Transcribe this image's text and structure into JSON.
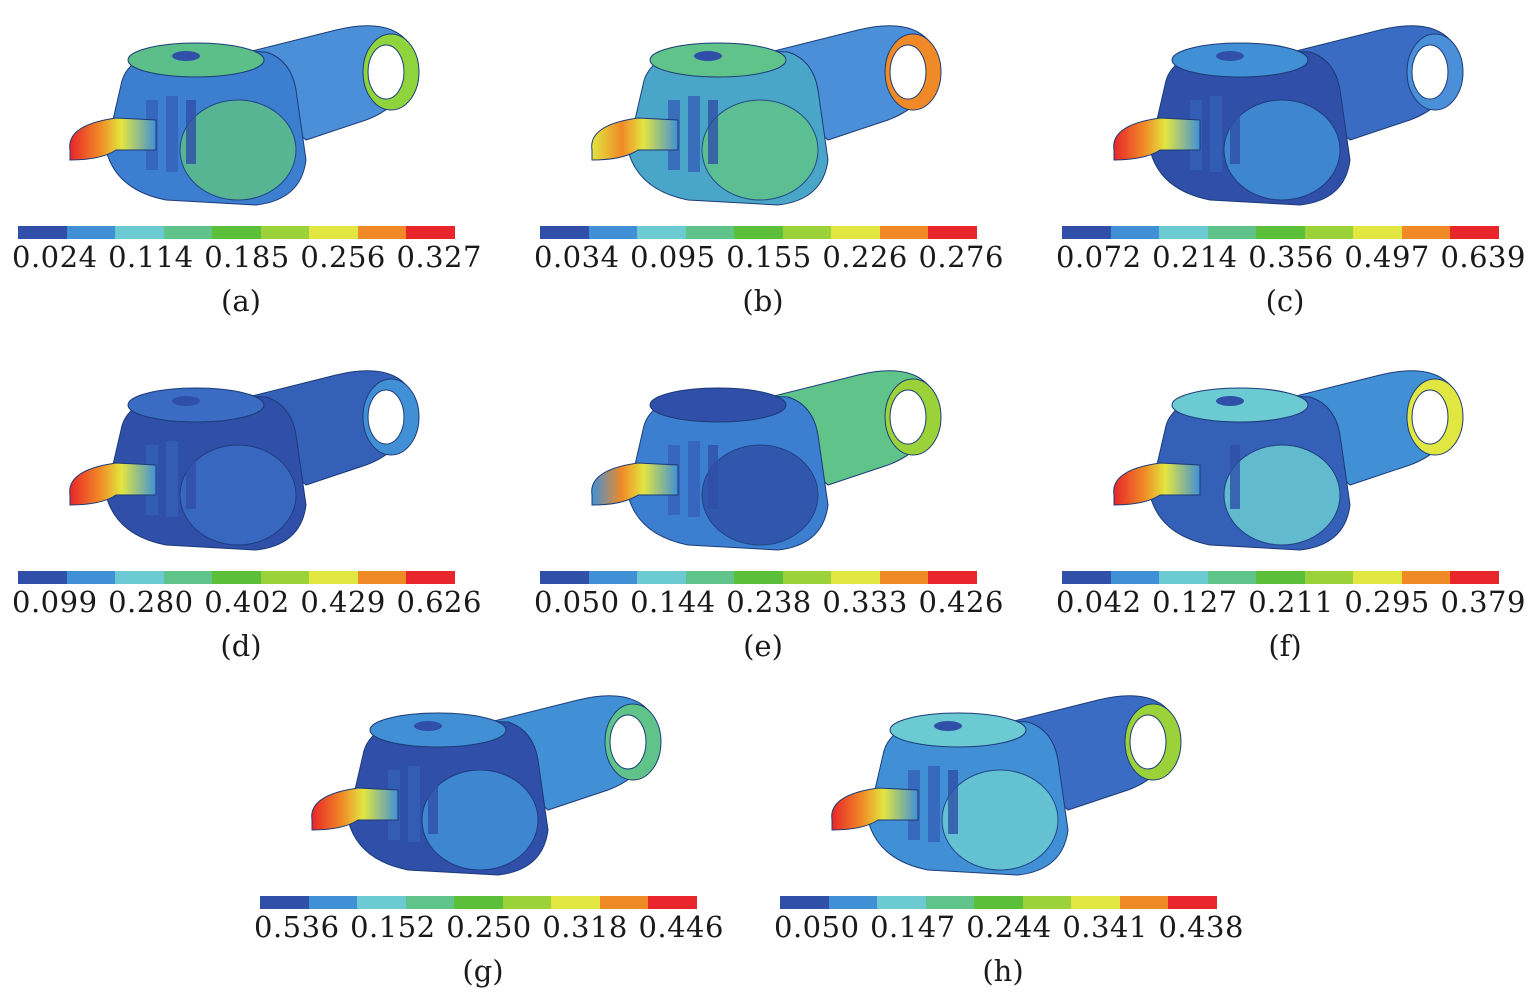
{
  "colormap": [
    "#2f4fa8",
    "#4190d6",
    "#6bcad2",
    "#60c48a",
    "#5cbf3a",
    "#9bd23a",
    "#e2e640",
    "#f08a26",
    "#e8252a"
  ],
  "panels": [
    {
      "label": "(a)",
      "ticks": [
        "0.024",
        "0.114",
        "0.185",
        "0.256",
        "0.327"
      ]
    },
    {
      "label": "(b)",
      "ticks": [
        "0.034",
        "0.095",
        "0.155",
        "0.226",
        "0.276"
      ]
    },
    {
      "label": "(c)",
      "ticks": [
        "0.072",
        "0.214",
        "0.356",
        "0.497",
        "0.639"
      ]
    },
    {
      "label": "(d)",
      "ticks": [
        "0.099",
        "0.280",
        "0.402",
        "0.429",
        "0.626"
      ]
    },
    {
      "label": "(e)",
      "ticks": [
        "0.050",
        "0.144",
        "0.238",
        "0.333",
        "0.426"
      ]
    },
    {
      "label": "(f)",
      "ticks": [
        "0.042",
        "0.127",
        "0.211",
        "0.295",
        "0.379"
      ]
    },
    {
      "label": "(g)",
      "ticks": [
        "0.536",
        "0.152",
        "0.250",
        "0.318",
        "0.446"
      ]
    },
    {
      "label": "(h)",
      "ticks": [
        "0.050",
        "0.147",
        "0.244",
        "0.341",
        "0.438"
      ]
    }
  ]
}
